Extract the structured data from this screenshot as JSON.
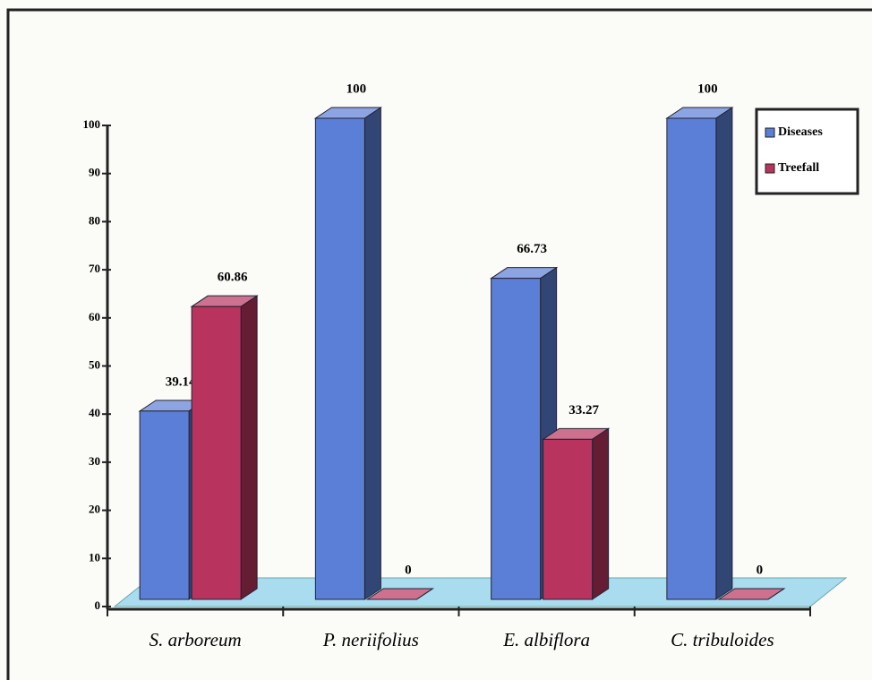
{
  "chart_data": {
    "type": "bar3d",
    "categories": [
      "S. arboreum",
      "P. neriifolius",
      "E. albiflora",
      "C. tribuloides"
    ],
    "series": [
      {
        "name": "Diseases",
        "color": "#5b7fd6",
        "values": [
          39.14,
          100,
          66.73,
          100
        ]
      },
      {
        "name": "Treefall",
        "color": "#b8345f",
        "values": [
          60.86,
          0,
          33.27,
          0
        ]
      }
    ],
    "ylim": [
      0,
      100
    ],
    "yticks": [
      0,
      10,
      20,
      30,
      40,
      50,
      60,
      70,
      80,
      90,
      100
    ],
    "legend": "upper right"
  }
}
